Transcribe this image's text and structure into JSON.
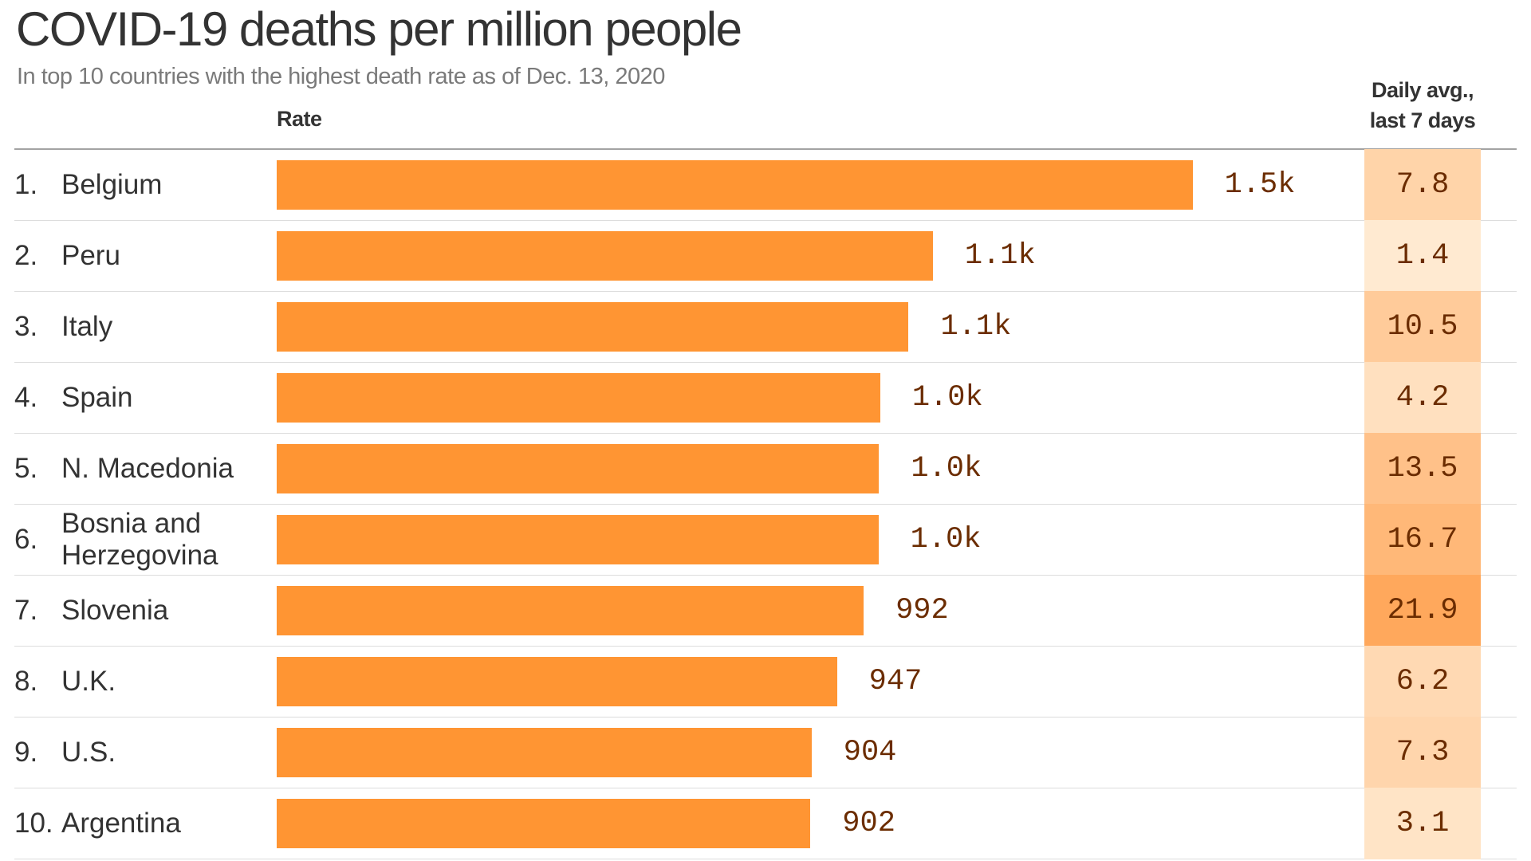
{
  "chart_data": {
    "type": "bar",
    "orientation": "horizontal",
    "title": "COVID-19 deaths per million people",
    "subtitle": "In top 10 countries with the highest death rate as of Dec. 13, 2020",
    "column_headers": {
      "rate": "Rate",
      "daily_avg": "Daily avg., last 7 days"
    },
    "categories": [
      "Belgium",
      "Peru",
      "Italy",
      "Spain",
      "N. Macedonia",
      "Bosnia and Herzegovina",
      "Slovenia",
      "U.K.",
      "U.S.",
      "Argentina"
    ],
    "ranks": [
      "1.",
      "2.",
      "3.",
      "4.",
      "5.",
      "6.",
      "7.",
      "8.",
      "9.",
      "10."
    ],
    "values": [
      1548,
      1109,
      1068,
      1020,
      1018,
      1017,
      992,
      947,
      904,
      902
    ],
    "value_labels": [
      "1.5k",
      "1.1k",
      "1.1k",
      "1.0k",
      "1.0k",
      "1.0k",
      "992",
      "947",
      "904",
      "902"
    ],
    "daily_avg": [
      7.8,
      1.4,
      10.5,
      4.2,
      13.5,
      16.7,
      21.9,
      6.2,
      7.3,
      3.1
    ],
    "daily_avg_labels": [
      "7.8",
      "1.4",
      "10.5",
      "4.2",
      "13.5",
      "16.7",
      "21.9",
      "6.2",
      "7.3",
      "3.1"
    ],
    "xlim": [
      0,
      1548
    ],
    "grid": false,
    "legend": "none"
  },
  "colors": {
    "bar": "#ff9533",
    "label": "#6b2c00",
    "avg_low": "#fff0dc",
    "avg_high": "#ffa85c"
  }
}
